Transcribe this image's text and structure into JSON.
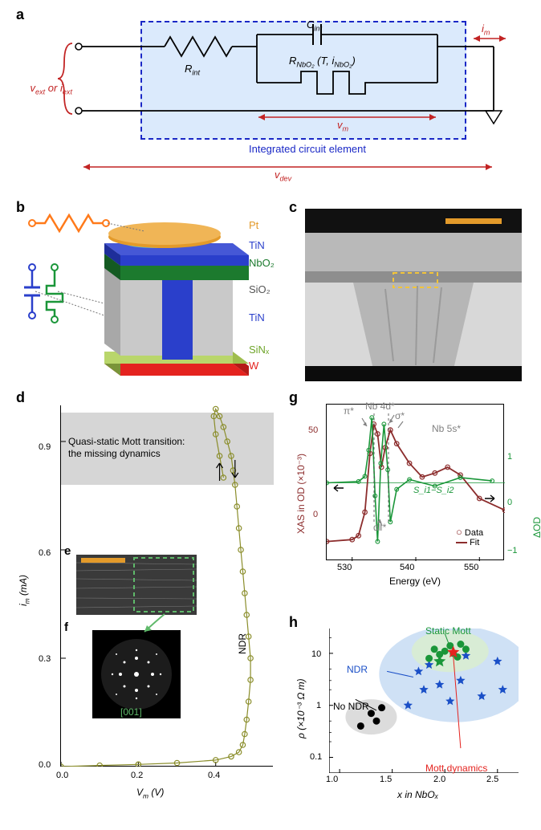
{
  "panels": {
    "a": {
      "label": "a"
    },
    "b": {
      "label": "b"
    },
    "c": {
      "label": "c"
    },
    "d": {
      "label": "d"
    },
    "e": {
      "label": "e"
    },
    "f": {
      "label": "f"
    },
    "g": {
      "label": "g"
    },
    "h": {
      "label": "h"
    }
  },
  "circuit": {
    "v_ext": "v_ext or i_ext",
    "v_ext_html": "v",
    "v_ext_sub": "ext",
    "i_ext_html": "i",
    "or": " or ",
    "R_int": "R",
    "R_int_sub": "int",
    "C_int": "C",
    "C_int_sub": "int",
    "R_NbO2_main": "R",
    "R_NbO2_sub": "NbO₂",
    "R_NbO2_args": " (T, i",
    "R_NbO2_args2": "NbO₂",
    "R_NbO2_close": ")",
    "i_m": "i",
    "i_m_sub": "m",
    "v_m": "v",
    "v_m_sub": "m",
    "v_dev": "v",
    "v_dev_sub": "dev",
    "box_label": "Integrated circuit element",
    "colors": {
      "box_bg": "#dbeafc",
      "box_border": "#1a28c6",
      "ext": "#c22424",
      "dev": "#c22424"
    }
  },
  "device": {
    "layers": [
      {
        "name": "Pt",
        "color": "#e39a2a"
      },
      {
        "name": "TiN",
        "color": "#2a3fcb"
      },
      {
        "name": "NbO₂",
        "color": "#1c7a2e"
      },
      {
        "name": "SiO₂",
        "color": "#888888"
      },
      {
        "name": "TiN",
        "color": "#2a3fcb"
      },
      {
        "name": "SiNₓ",
        "color": "#6fa52a"
      },
      {
        "name": "W",
        "color": "#e4231f"
      }
    ],
    "symbol_colors": {
      "resistor": "#ff7a1a",
      "capacitor": "#2a3fcb",
      "memristor": "#1a9639"
    }
  },
  "tem": {
    "scalebar_color": "#e39a2a",
    "roi_color": "#f2c43a"
  },
  "iv": {
    "xlabel": "V_m (V)",
    "xlabel_main": "V",
    "xlabel_sub": "m",
    "xlabel_unit": " (V)",
    "ylabel": "i_m (mA)",
    "ylabel_main": "i",
    "ylabel_sub": "m",
    "ylabel_unit": " (mA)",
    "xticks": [
      "0.0",
      "0.2",
      "0.4"
    ],
    "yticks": [
      "0.0",
      "0.3",
      "0.6",
      "0.9"
    ],
    "note": "Quasi-static Mott transition: the missing dynamics",
    "ndr": "NDR",
    "zone_axis": "[001]",
    "xlim": [
      0.0,
      0.55
    ],
    "ylim": [
      0.0,
      1.0
    ],
    "marker_color": "#8a8d2a",
    "band_color": "#d6d6d6",
    "band_y": [
      0.78,
      0.98
    ],
    "curve": [
      [
        0.0,
        0.0
      ],
      [
        0.1,
        0.003
      ],
      [
        0.2,
        0.006
      ],
      [
        0.3,
        0.01
      ],
      [
        0.4,
        0.018
      ],
      [
        0.44,
        0.028
      ],
      [
        0.46,
        0.04
      ],
      [
        0.47,
        0.06
      ],
      [
        0.475,
        0.09
      ],
      [
        0.48,
        0.13
      ],
      [
        0.485,
        0.18
      ],
      [
        0.49,
        0.24
      ],
      [
        0.49,
        0.3
      ],
      [
        0.485,
        0.36
      ],
      [
        0.48,
        0.42
      ],
      [
        0.475,
        0.48
      ],
      [
        0.47,
        0.54
      ],
      [
        0.465,
        0.6
      ],
      [
        0.46,
        0.66
      ],
      [
        0.455,
        0.72
      ],
      [
        0.45,
        0.78
      ],
      [
        0.445,
        0.82
      ],
      [
        0.44,
        0.86
      ],
      [
        0.43,
        0.9
      ],
      [
        0.42,
        0.94
      ],
      [
        0.41,
        0.97
      ],
      [
        0.4,
        0.99
      ],
      [
        0.395,
        0.97
      ],
      [
        0.4,
        0.92
      ],
      [
        0.41,
        0.86
      ],
      [
        0.42,
        0.8
      ]
    ]
  },
  "xas": {
    "xlabel": "Energy (eV)",
    "ylabel_left": "XAS in OD (×10⁻³)",
    "ylabel_right": "ΔOD (×10⁻³)",
    "xticks": [
      "530",
      "540",
      "550"
    ],
    "yticks_left": [
      "0",
      "50"
    ],
    "yticks_right": [
      "−1",
      "0",
      "1"
    ],
    "xlim": [
      526,
      554
    ],
    "ylim_left": [
      -10,
      70
    ],
    "ylim_right": [
      -1.2,
      1.2
    ],
    "annot": {
      "pi": "π*",
      "nb4d": "Nb 4d*",
      "sigma": "σ*",
      "nb5s": "Nb 5s*",
      "dpar": "d‖*",
      "si": "S_i1−S_i2"
    },
    "legend": {
      "data": "Data",
      "fit": "Fit"
    },
    "colors": {
      "data": "#8c2d2d",
      "fit": "#8c2d2d",
      "delta": "#1a9639",
      "annot": "#808080"
    },
    "main_curve": [
      [
        526,
        0
      ],
      [
        530,
        1
      ],
      [
        531,
        3
      ],
      [
        532,
        15
      ],
      [
        532.8,
        45
      ],
      [
        533.4,
        60
      ],
      [
        534,
        55
      ],
      [
        534.6,
        38
      ],
      [
        535.2,
        48
      ],
      [
        536,
        57
      ],
      [
        537,
        50
      ],
      [
        539,
        40
      ],
      [
        541,
        33
      ],
      [
        543,
        35
      ],
      [
        545,
        38
      ],
      [
        547,
        34
      ],
      [
        550,
        22
      ],
      [
        554,
        16
      ]
    ],
    "delta_curve": [
      [
        526,
        0
      ],
      [
        531,
        0.02
      ],
      [
        532,
        0.1
      ],
      [
        532.6,
        0.5
      ],
      [
        533.1,
        1.0
      ],
      [
        533.6,
        -0.2
      ],
      [
        534,
        -0.9
      ],
      [
        534.5,
        0.3
      ],
      [
        535,
        0.9
      ],
      [
        535.6,
        0.2
      ],
      [
        536,
        -0.6
      ],
      [
        537,
        -0.1
      ],
      [
        539,
        0.05
      ],
      [
        543,
        -0.05
      ],
      [
        547,
        0.08
      ],
      [
        552,
        0.03
      ]
    ]
  },
  "scatter": {
    "xlabel": "x in NbOₓ",
    "ylabel": "ρ (×10⁻³ Ω m)",
    "xticks": [
      "1.0",
      "1.5",
      "2.0",
      "2.5"
    ],
    "yticks": [
      "0.1",
      "1",
      "10"
    ],
    "xlim": [
      0.9,
      2.7
    ],
    "ylim_log": [
      0.05,
      30
    ],
    "legend": {
      "static": "Static Mott",
      "ndr": "NDR",
      "nondr": "No NDR",
      "dyn": "Mott dynamics"
    },
    "region_colors": {
      "nondr": "#dcdcdc",
      "ndr": "#cfe1f5",
      "static": "#d8ecd5"
    },
    "colors": {
      "black": "#000000",
      "blue": "#1a4fc7",
      "green": "#1a9639",
      "green_star": "#1a9639",
      "red": "#e4231f"
    },
    "points": {
      "black": [
        [
          1.2,
          0.4
        ],
        [
          1.3,
          0.7
        ],
        [
          1.35,
          0.5
        ],
        [
          1.4,
          0.9
        ]
      ],
      "blue": [
        [
          1.65,
          1.0
        ],
        [
          1.75,
          4.5
        ],
        [
          1.8,
          2.0
        ],
        [
          1.85,
          6.0
        ],
        [
          1.95,
          2.5
        ],
        [
          2.05,
          1.2
        ],
        [
          2.15,
          3.0
        ],
        [
          2.2,
          9.0
        ],
        [
          2.35,
          1.5
        ],
        [
          2.5,
          7.0
        ],
        [
          2.55,
          2.0
        ]
      ],
      "green": [
        [
          1.85,
          8.0
        ],
        [
          1.9,
          12.0
        ],
        [
          1.95,
          9.5
        ],
        [
          2.0,
          11.0
        ],
        [
          2.05,
          14.0
        ],
        [
          2.08,
          10.0
        ],
        [
          2.12,
          8.5
        ],
        [
          2.2,
          12.0
        ],
        [
          2.15,
          15.0
        ]
      ],
      "green_star": [
        [
          1.95,
          7.0
        ]
      ],
      "red_star": [
        [
          2.08,
          10.5
        ]
      ]
    }
  }
}
